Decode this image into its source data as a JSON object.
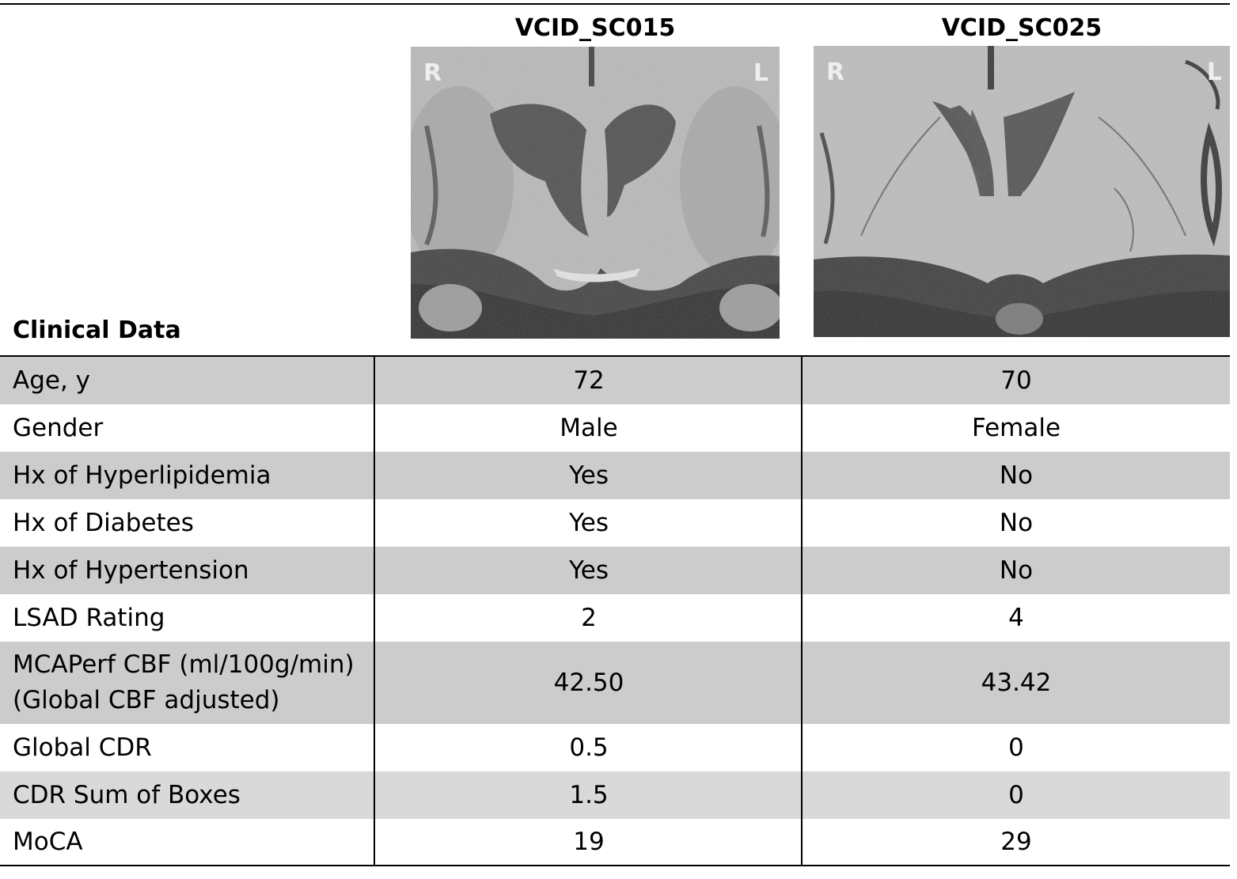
{
  "subjects": [
    {
      "id": "VCID_SC015",
      "orient_r": "R",
      "orient_l": "L"
    },
    {
      "id": "VCID_SC025",
      "orient_r": "R",
      "orient_l": "L"
    }
  ],
  "section_title": "Clinical Data",
  "rows": [
    {
      "label": "Age, y",
      "v1": "72",
      "v2": "70"
    },
    {
      "label": "Gender",
      "v1": "Male",
      "v2": "Female"
    },
    {
      "label": "Hx of Hyperlipidemia",
      "v1": "Yes",
      "v2": "No"
    },
    {
      "label": "Hx of Diabetes",
      "v1": "Yes",
      "v2": "No"
    },
    {
      "label": "Hx of Hypertension",
      "v1": "Yes",
      "v2": "No"
    },
    {
      "label": "LSAD Rating",
      "v1": "2",
      "v2": "4"
    },
    {
      "label_line1": "MCAPerf CBF (ml/100g/min)",
      "label_line2": "(Global CBF adjusted)",
      "v1": "42.50",
      "v2": "43.42"
    },
    {
      "label": "Global CDR",
      "v1": "0.5",
      "v2": "0"
    },
    {
      "label": "CDR Sum of Boxes",
      "v1": "1.5",
      "v2": "0"
    },
    {
      "label": "MoCA",
      "v1": "19",
      "v2": "29"
    }
  ]
}
